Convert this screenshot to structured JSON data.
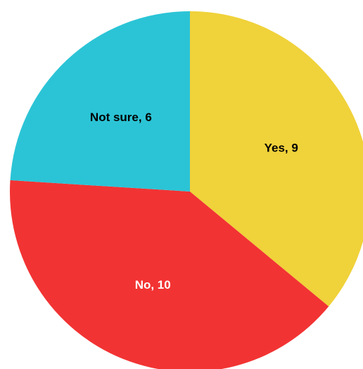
{
  "chart_data": {
    "type": "pie",
    "title": "",
    "slices": [
      {
        "label": "Yes, 9",
        "value": 9,
        "color": "#F0D23A",
        "text_color": "#000000"
      },
      {
        "label": "No, 10",
        "value": 10,
        "color": "#F23333",
        "text_color": "#ffffff"
      },
      {
        "label": "Not sure, 6",
        "value": 6,
        "color": "#2BC4D6",
        "text_color": "#000000"
      }
    ],
    "start_angle": "12 o'clock",
    "direction": "clockwise"
  }
}
